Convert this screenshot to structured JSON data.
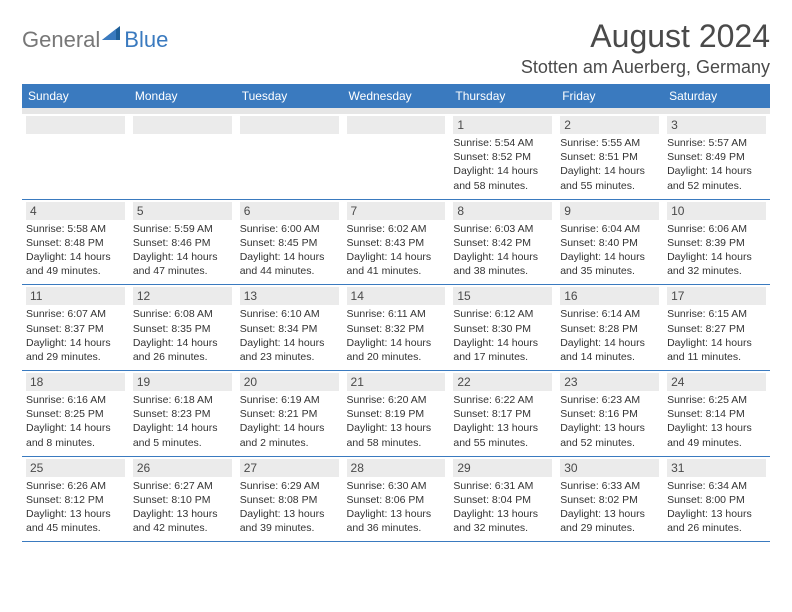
{
  "logo": {
    "general": "General",
    "blue": "Blue"
  },
  "title": "August 2024",
  "location": "Stotten am Auerberg, Germany",
  "colors": {
    "accent": "#3a7abf",
    "header_text": "#ffffff",
    "band": "#ebebeb",
    "body_text": "#333333",
    "title_text": "#4a4a4a"
  },
  "day_headers": [
    "Sunday",
    "Monday",
    "Tuesday",
    "Wednesday",
    "Thursday",
    "Friday",
    "Saturday"
  ],
  "weeks": [
    [
      null,
      null,
      null,
      null,
      {
        "n": "1",
        "sr": "Sunrise: 5:54 AM",
        "ss": "Sunset: 8:52 PM",
        "d1": "Daylight: 14 hours",
        "d2": "and 58 minutes."
      },
      {
        "n": "2",
        "sr": "Sunrise: 5:55 AM",
        "ss": "Sunset: 8:51 PM",
        "d1": "Daylight: 14 hours",
        "d2": "and 55 minutes."
      },
      {
        "n": "3",
        "sr": "Sunrise: 5:57 AM",
        "ss": "Sunset: 8:49 PM",
        "d1": "Daylight: 14 hours",
        "d2": "and 52 minutes."
      }
    ],
    [
      {
        "n": "4",
        "sr": "Sunrise: 5:58 AM",
        "ss": "Sunset: 8:48 PM",
        "d1": "Daylight: 14 hours",
        "d2": "and 49 minutes."
      },
      {
        "n": "5",
        "sr": "Sunrise: 5:59 AM",
        "ss": "Sunset: 8:46 PM",
        "d1": "Daylight: 14 hours",
        "d2": "and 47 minutes."
      },
      {
        "n": "6",
        "sr": "Sunrise: 6:00 AM",
        "ss": "Sunset: 8:45 PM",
        "d1": "Daylight: 14 hours",
        "d2": "and 44 minutes."
      },
      {
        "n": "7",
        "sr": "Sunrise: 6:02 AM",
        "ss": "Sunset: 8:43 PM",
        "d1": "Daylight: 14 hours",
        "d2": "and 41 minutes."
      },
      {
        "n": "8",
        "sr": "Sunrise: 6:03 AM",
        "ss": "Sunset: 8:42 PM",
        "d1": "Daylight: 14 hours",
        "d2": "and 38 minutes."
      },
      {
        "n": "9",
        "sr": "Sunrise: 6:04 AM",
        "ss": "Sunset: 8:40 PM",
        "d1": "Daylight: 14 hours",
        "d2": "and 35 minutes."
      },
      {
        "n": "10",
        "sr": "Sunrise: 6:06 AM",
        "ss": "Sunset: 8:39 PM",
        "d1": "Daylight: 14 hours",
        "d2": "and 32 minutes."
      }
    ],
    [
      {
        "n": "11",
        "sr": "Sunrise: 6:07 AM",
        "ss": "Sunset: 8:37 PM",
        "d1": "Daylight: 14 hours",
        "d2": "and 29 minutes."
      },
      {
        "n": "12",
        "sr": "Sunrise: 6:08 AM",
        "ss": "Sunset: 8:35 PM",
        "d1": "Daylight: 14 hours",
        "d2": "and 26 minutes."
      },
      {
        "n": "13",
        "sr": "Sunrise: 6:10 AM",
        "ss": "Sunset: 8:34 PM",
        "d1": "Daylight: 14 hours",
        "d2": "and 23 minutes."
      },
      {
        "n": "14",
        "sr": "Sunrise: 6:11 AM",
        "ss": "Sunset: 8:32 PM",
        "d1": "Daylight: 14 hours",
        "d2": "and 20 minutes."
      },
      {
        "n": "15",
        "sr": "Sunrise: 6:12 AM",
        "ss": "Sunset: 8:30 PM",
        "d1": "Daylight: 14 hours",
        "d2": "and 17 minutes."
      },
      {
        "n": "16",
        "sr": "Sunrise: 6:14 AM",
        "ss": "Sunset: 8:28 PM",
        "d1": "Daylight: 14 hours",
        "d2": "and 14 minutes."
      },
      {
        "n": "17",
        "sr": "Sunrise: 6:15 AM",
        "ss": "Sunset: 8:27 PM",
        "d1": "Daylight: 14 hours",
        "d2": "and 11 minutes."
      }
    ],
    [
      {
        "n": "18",
        "sr": "Sunrise: 6:16 AM",
        "ss": "Sunset: 8:25 PM",
        "d1": "Daylight: 14 hours",
        "d2": "and 8 minutes."
      },
      {
        "n": "19",
        "sr": "Sunrise: 6:18 AM",
        "ss": "Sunset: 8:23 PM",
        "d1": "Daylight: 14 hours",
        "d2": "and 5 minutes."
      },
      {
        "n": "20",
        "sr": "Sunrise: 6:19 AM",
        "ss": "Sunset: 8:21 PM",
        "d1": "Daylight: 14 hours",
        "d2": "and 2 minutes."
      },
      {
        "n": "21",
        "sr": "Sunrise: 6:20 AM",
        "ss": "Sunset: 8:19 PM",
        "d1": "Daylight: 13 hours",
        "d2": "and 58 minutes."
      },
      {
        "n": "22",
        "sr": "Sunrise: 6:22 AM",
        "ss": "Sunset: 8:17 PM",
        "d1": "Daylight: 13 hours",
        "d2": "and 55 minutes."
      },
      {
        "n": "23",
        "sr": "Sunrise: 6:23 AM",
        "ss": "Sunset: 8:16 PM",
        "d1": "Daylight: 13 hours",
        "d2": "and 52 minutes."
      },
      {
        "n": "24",
        "sr": "Sunrise: 6:25 AM",
        "ss": "Sunset: 8:14 PM",
        "d1": "Daylight: 13 hours",
        "d2": "and 49 minutes."
      }
    ],
    [
      {
        "n": "25",
        "sr": "Sunrise: 6:26 AM",
        "ss": "Sunset: 8:12 PM",
        "d1": "Daylight: 13 hours",
        "d2": "and 45 minutes."
      },
      {
        "n": "26",
        "sr": "Sunrise: 6:27 AM",
        "ss": "Sunset: 8:10 PM",
        "d1": "Daylight: 13 hours",
        "d2": "and 42 minutes."
      },
      {
        "n": "27",
        "sr": "Sunrise: 6:29 AM",
        "ss": "Sunset: 8:08 PM",
        "d1": "Daylight: 13 hours",
        "d2": "and 39 minutes."
      },
      {
        "n": "28",
        "sr": "Sunrise: 6:30 AM",
        "ss": "Sunset: 8:06 PM",
        "d1": "Daylight: 13 hours",
        "d2": "and 36 minutes."
      },
      {
        "n": "29",
        "sr": "Sunrise: 6:31 AM",
        "ss": "Sunset: 8:04 PM",
        "d1": "Daylight: 13 hours",
        "d2": "and 32 minutes."
      },
      {
        "n": "30",
        "sr": "Sunrise: 6:33 AM",
        "ss": "Sunset: 8:02 PM",
        "d1": "Daylight: 13 hours",
        "d2": "and 29 minutes."
      },
      {
        "n": "31",
        "sr": "Sunrise: 6:34 AM",
        "ss": "Sunset: 8:00 PM",
        "d1": "Daylight: 13 hours",
        "d2": "and 26 minutes."
      }
    ]
  ]
}
